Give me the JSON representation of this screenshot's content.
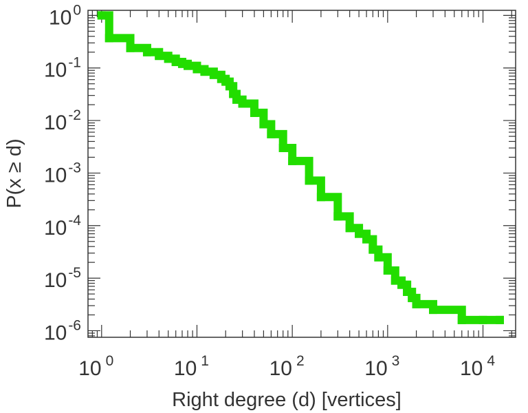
{
  "chart_data": {
    "type": "line",
    "step": true,
    "xscale": "log",
    "yscale": "log",
    "xlabel": "Right degree (d) [vertices]",
    "ylabel": "P(x ≥ d)",
    "xlim": [
      0.72,
      22000
    ],
    "ylim": [
      7.5e-07,
      1.25
    ],
    "grid": false,
    "legend": "none",
    "x_ticks": [
      {
        "value": 1,
        "base": "10",
        "exp": "0"
      },
      {
        "value": 10,
        "base": "10",
        "exp": "1"
      },
      {
        "value": 100,
        "base": "10",
        "exp": "2"
      },
      {
        "value": 1000,
        "base": "10",
        "exp": "3"
      },
      {
        "value": 10000,
        "base": "10",
        "exp": "4"
      }
    ],
    "y_ticks": [
      {
        "value": 1,
        "base": "10",
        "exp": "0"
      },
      {
        "value": 0.1,
        "base": "10",
        "exp": "-1"
      },
      {
        "value": 0.01,
        "base": "10",
        "exp": "-2"
      },
      {
        "value": 0.001,
        "base": "10",
        "exp": "-3"
      },
      {
        "value": 0.0001,
        "base": "10",
        "exp": "-4"
      },
      {
        "value": 1e-05,
        "base": "10",
        "exp": "-5"
      },
      {
        "value": 1e-06,
        "base": "10",
        "exp": "-6"
      }
    ],
    "series": [
      {
        "color": "#22dd00",
        "x": [
          1,
          1.2,
          2,
          3,
          4,
          5,
          6,
          7,
          8,
          10,
          12,
          15,
          18,
          20,
          22,
          24,
          26,
          30,
          40,
          50,
          60,
          80,
          100,
          150,
          200,
          300,
          400,
          500,
          600,
          700,
          800,
          1000,
          1200,
          1400,
          1600,
          1800,
          2000,
          3000,
          6000,
          10000,
          15000
        ],
        "y": [
          1,
          0.37,
          0.24,
          0.2,
          0.17,
          0.15,
          0.13,
          0.12,
          0.11,
          0.095,
          0.085,
          0.074,
          0.062,
          0.055,
          0.045,
          0.032,
          0.025,
          0.021,
          0.014,
          0.0085,
          0.0055,
          0.003,
          0.0017,
          0.00072,
          0.00035,
          0.00015,
          9e-05,
          7e-05,
          5.5e-05,
          3.5e-05,
          2.5e-05,
          1.4e-05,
          9e-06,
          7.5e-06,
          5.5e-06,
          4.2e-06,
          3.2e-06,
          2.5e-06,
          1.6e-06,
          1.6e-06,
          1.6e-06
        ]
      }
    ]
  }
}
